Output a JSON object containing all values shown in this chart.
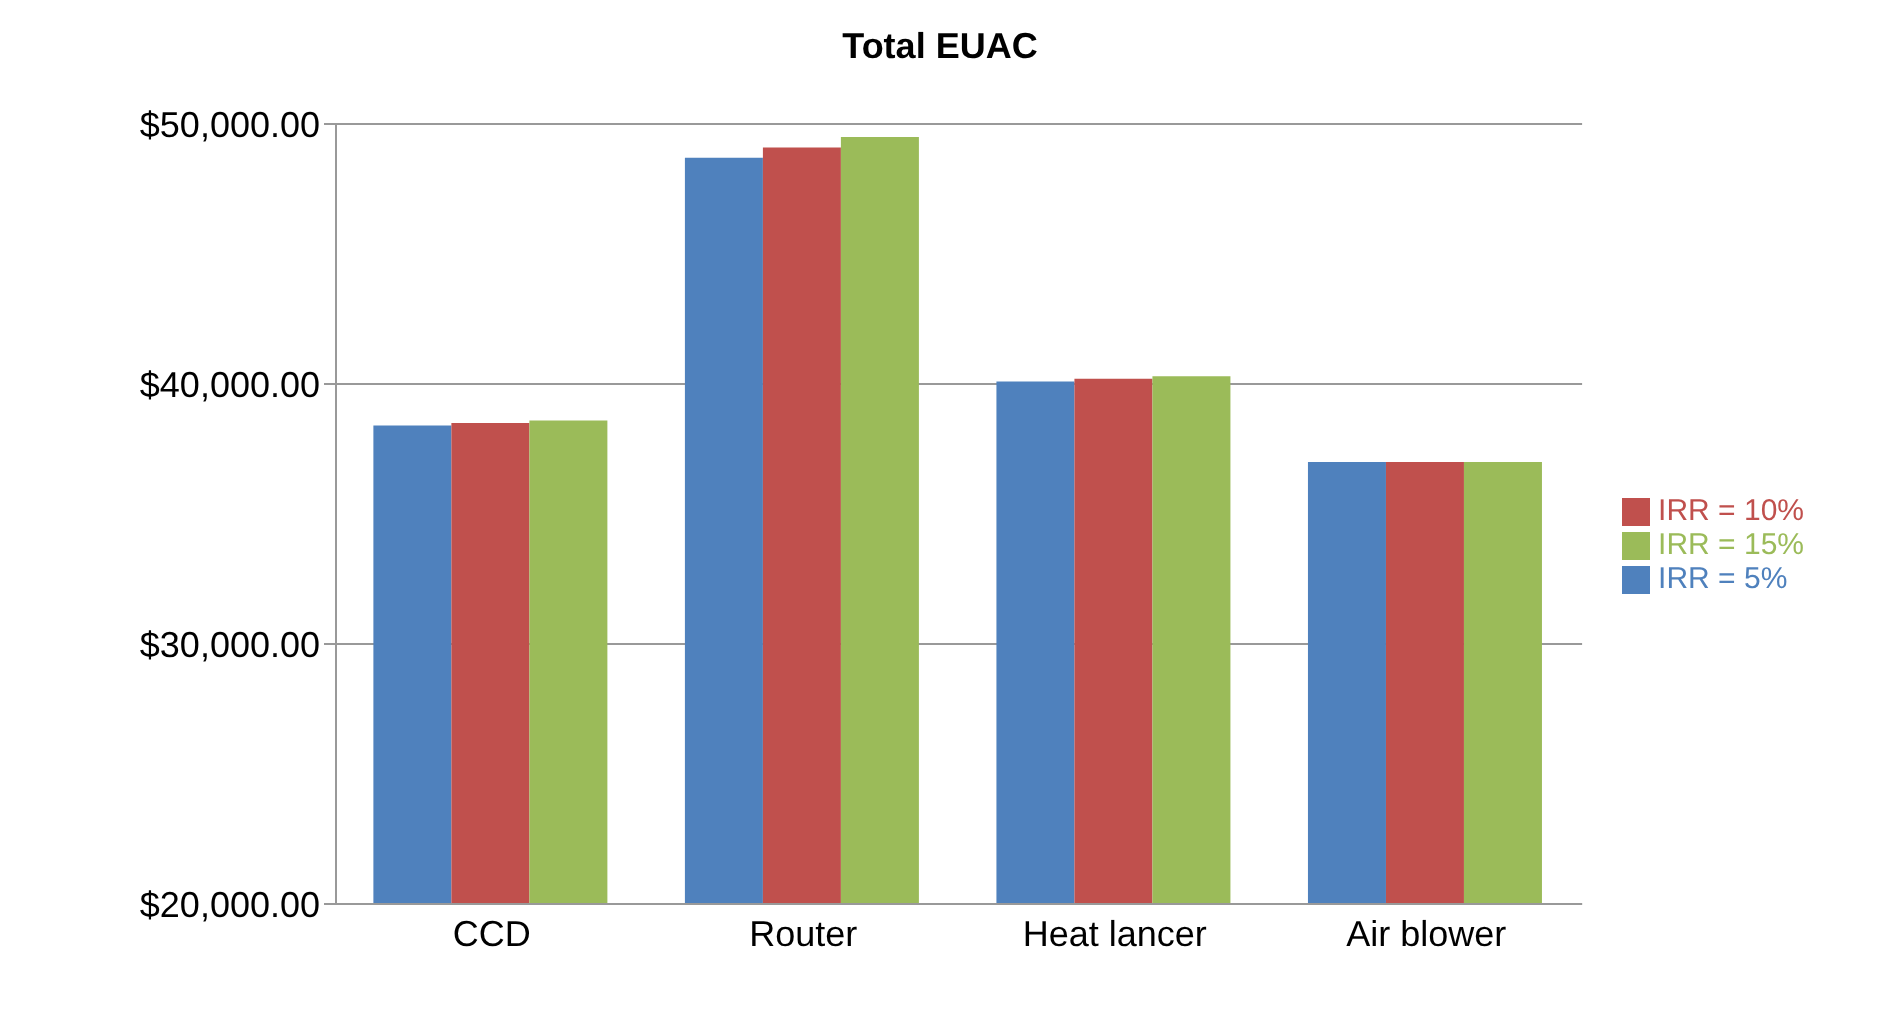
{
  "chart_data": {
    "type": "bar",
    "title": "Total EUAC",
    "categories": [
      "CCD",
      "Router",
      "Heat lancer",
      "Air blower"
    ],
    "series": [
      {
        "name": "IRR = 5%",
        "color": "#4f81bd",
        "values": [
          38400,
          48700,
          40100,
          37000
        ]
      },
      {
        "name": "IRR = 10%",
        "color": "#c0504d",
        "values": [
          38500,
          49100,
          40200,
          37000
        ]
      },
      {
        "name": "IRR = 15%",
        "color": "#9bbb59",
        "values": [
          38600,
          49500,
          40300,
          37000
        ]
      }
    ],
    "ylim": [
      20000,
      50000
    ],
    "yticks": [
      {
        "value": 20000,
        "label": "$20,000.00"
      },
      {
        "value": 30000,
        "label": "$30,000.00"
      },
      {
        "value": 40000,
        "label": "$40,000.00"
      },
      {
        "value": 50000,
        "label": "$50,000.00"
      }
    ],
    "grid": "y",
    "legend": "right"
  }
}
